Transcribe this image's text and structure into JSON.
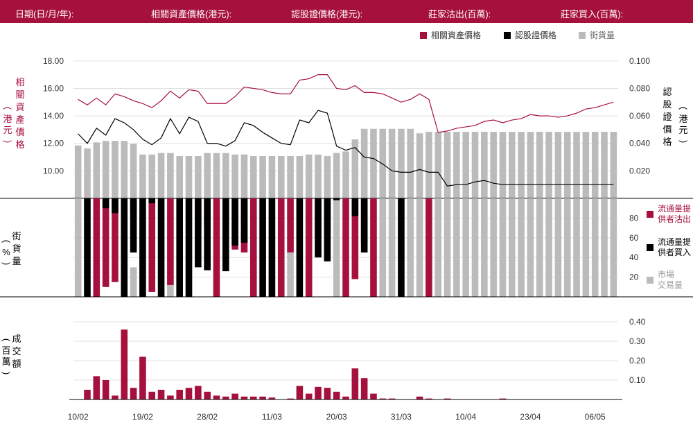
{
  "header": {
    "date": "日期(日/月/年):",
    "underlying_price": "相關資產價格(港元):",
    "warrant_price": "認股證價格(港元):",
    "issuer_sell": "莊家沽出(百萬):",
    "issuer_buy": "莊家買入(百萬):"
  },
  "legend": {
    "underlying": "相關資產價格",
    "warrant": "認股證價格",
    "outstanding": "街貨量"
  },
  "left_labels": {
    "price_chars": [
      "相",
      "關",
      "資",
      "產",
      "價",
      "格"
    ],
    "price_unit_chars": [
      "港",
      "元"
    ],
    "outstanding_chars": [
      "街",
      "貨",
      "量"
    ],
    "outstanding_unit": "%",
    "turnover_chars": [
      "成",
      "交",
      "額"
    ],
    "turnover_unit_chars": [
      "百",
      "萬"
    ]
  },
  "right_labels": {
    "warrant_chars": [
      "認",
      "股",
      "證",
      "價",
      "格"
    ],
    "warrant_unit_chars": [
      "港",
      "元"
    ]
  },
  "mid_legend": {
    "lp_sell": [
      "流通量提",
      "供者沽出"
    ],
    "lp_buy": [
      "流通量提",
      "供者買入"
    ],
    "market": [
      "市場",
      "交易量"
    ]
  },
  "colors": {
    "brand": "#a6103c",
    "sell": "#a6103c",
    "buy": "#000000",
    "market": "#bbbbbb",
    "grid": "#e0e0e0"
  },
  "chart_data": [
    {
      "type": "line",
      "title": "",
      "xlabel": "",
      "y_left": {
        "ylim": [
          8.0,
          19.0
        ],
        "ticks": [
          "18.00",
          "16.00",
          "14.00",
          "12.00",
          "10.00"
        ],
        "tick_values": [
          18,
          16,
          14,
          12,
          10
        ]
      },
      "y_right": {
        "ylim": [
          0.0,
          0.11
        ],
        "ticks": [
          "0.100",
          "0.080",
          "0.060",
          "0.040",
          "0.020"
        ],
        "tick_values": [
          0.1,
          0.08,
          0.06,
          0.04,
          0.02
        ]
      },
      "series": [
        {
          "name": "相關資產價格",
          "axis": "left",
          "values": [
            15.2,
            14.8,
            15.3,
            14.8,
            15.6,
            15.4,
            15.1,
            14.9,
            14.6,
            15.1,
            15.8,
            15.3,
            15.9,
            15.8,
            14.9,
            14.9,
            14.9,
            15.4,
            16.1,
            16.0,
            15.9,
            15.7,
            15.6,
            15.6,
            16.6,
            16.7,
            17.0,
            17.0,
            16.0,
            15.9,
            16.2,
            15.7,
            15.7,
            15.6,
            15.3,
            15.0,
            15.2,
            15.6,
            15.2,
            12.8,
            12.9,
            13.1,
            13.2,
            13.3,
            13.6,
            13.7,
            13.5,
            13.7,
            13.8,
            14.1,
            14.0,
            14.0,
            13.9,
            14.0,
            14.2,
            14.5,
            14.6,
            14.8,
            15.0
          ]
        },
        {
          "name": "認股證價格",
          "axis": "right",
          "values": [
            0.047,
            0.04,
            0.051,
            0.046,
            0.058,
            0.055,
            0.05,
            0.043,
            0.039,
            0.044,
            0.058,
            0.047,
            0.059,
            0.056,
            0.04,
            0.04,
            0.038,
            0.042,
            0.055,
            0.053,
            0.048,
            0.044,
            0.04,
            0.039,
            0.057,
            0.055,
            0.064,
            0.062,
            0.038,
            0.035,
            0.037,
            0.03,
            0.029,
            0.025,
            0.02,
            0.019,
            0.019,
            0.021,
            0.019,
            0.019,
            0.009,
            0.01,
            0.01,
            0.012,
            0.013,
            0.011,
            0.01,
            0.01,
            0.01,
            0.01,
            0.01,
            0.01,
            0.01,
            0.01,
            0.01,
            0.01,
            0.01,
            0.01,
            0.01
          ]
        }
      ]
    },
    {
      "type": "bar",
      "ylabel": "街貨量 (%)",
      "ylim": [
        0,
        100
      ],
      "ticks": [
        "80",
        "60",
        "40",
        "20"
      ],
      "tick_values": [
        80,
        60,
        40,
        20
      ],
      "series": [
        {
          "name": "街貨量",
          "values": [
            35,
            33,
            37,
            38,
            38,
            38,
            36,
            29,
            29,
            30,
            30,
            28,
            28,
            28,
            30,
            30,
            30,
            29,
            29,
            28,
            28,
            28,
            28,
            28,
            28,
            29,
            29,
            28,
            30,
            31,
            39,
            46,
            46,
            46,
            46,
            46,
            46,
            43,
            44,
            44,
            44,
            44,
            44,
            44,
            44,
            44,
            44,
            44,
            44,
            44,
            44,
            44,
            44,
            44,
            44,
            44,
            44,
            44,
            44
          ]
        }
      ]
    },
    {
      "type": "bar",
      "ylabel": "成交額 (百萬)",
      "ylim": [
        0,
        0.45
      ],
      "ticks": [
        "0.40",
        "0.30",
        "0.20",
        "0.10"
      ],
      "tick_values": [
        0.4,
        0.3,
        0.2,
        0.1
      ],
      "x_ticks": [
        "10/02",
        "19/02",
        "28/02",
        "11/03",
        "20/03",
        "31/03",
        "10/04",
        "23/04",
        "06/05"
      ],
      "x_tick_index": [
        0,
        7,
        14,
        21,
        28,
        35,
        42,
        49,
        56
      ],
      "categories_count": 59,
      "series": [
        {
          "name": "成交額",
          "values": [
            0,
            0.05,
            0.12,
            0.1,
            0.02,
            0.36,
            0.06,
            0.22,
            0.04,
            0.05,
            0.02,
            0.05,
            0.06,
            0.07,
            0.04,
            0.02,
            0.015,
            0.03,
            0.015,
            0.015,
            0.015,
            0.01,
            0,
            0.005,
            0.07,
            0.03,
            0.065,
            0.06,
            0.04,
            0.015,
            0.16,
            0.11,
            0.03,
            0.005,
            0.005,
            0,
            0,
            0.015,
            0.005,
            0,
            0.005,
            0,
            0,
            0,
            0,
            0,
            0.005,
            0,
            0,
            0,
            0,
            0,
            0,
            0,
            0,
            0,
            0,
            0,
            0
          ]
        }
      ]
    }
  ],
  "trading_split": {
    "composition": "per bar: sell (red) segment and buy (black) segment, each as a fraction of the bar's turnover; remaining share is market trading (grey)",
    "sell": [
      0,
      0,
      1,
      0.9,
      0.85,
      0,
      0.15,
      0,
      0.95,
      0,
      0.88,
      0,
      0,
      0.3,
      0.27,
      1,
      0.26,
      0.52,
      0.55,
      1,
      0,
      0,
      1,
      0.55,
      0,
      1,
      0.4,
      0.36,
      0,
      1,
      0.82,
      0.45,
      1,
      0,
      0,
      0,
      0,
      0,
      1,
      0,
      0,
      0,
      0,
      0,
      0,
      0,
      0,
      0,
      0,
      0,
      0,
      0,
      0,
      0,
      0,
      0,
      0,
      0,
      0
    ],
    "buy": [
      0,
      1,
      0,
      0.1,
      0.15,
      1,
      0.55,
      1,
      0.05,
      1,
      0,
      1,
      1,
      0.7,
      0.73,
      0,
      0.74,
      0.48,
      0.45,
      0,
      1,
      1,
      0,
      0,
      1,
      0,
      0.6,
      0.64,
      0.02,
      0,
      0.18,
      0.55,
      0,
      0,
      0,
      1,
      0,
      0,
      0,
      0,
      0,
      0,
      0,
      0,
      0,
      0,
      0,
      0,
      0,
      0,
      0,
      0,
      0,
      0,
      0,
      0,
      0,
      0,
      0
    ],
    "market": [
      1,
      0,
      0,
      0,
      0,
      0,
      0.3,
      0,
      0,
      0,
      0.12,
      0,
      0,
      0,
      0,
      0,
      0,
      0,
      0,
      0,
      0,
      0,
      0,
      0.45,
      0,
      0,
      0,
      0,
      0.98,
      0,
      0,
      0,
      0,
      1,
      1,
      0,
      1,
      1,
      0,
      1,
      1,
      1,
      1,
      1,
      1,
      1,
      1,
      1,
      1,
      1,
      1,
      1,
      1,
      1,
      1,
      1,
      1,
      1,
      1
    ]
  }
}
